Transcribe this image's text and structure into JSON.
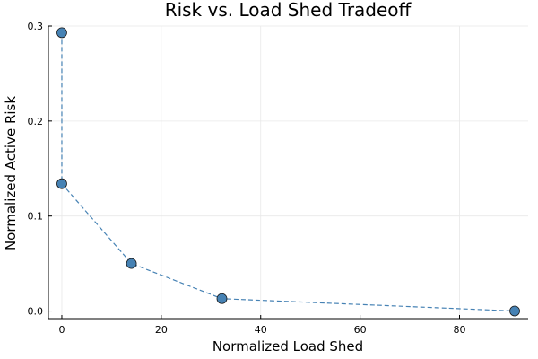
{
  "chart_data": {
    "type": "scatter",
    "title": "Risk vs. Load Shed Tradeoff",
    "xlabel": "Normalized Load Shed",
    "ylabel": "Normalized Active Risk",
    "xlim": [
      -2.7,
      93.8
    ],
    "ylim": [
      -0.008,
      0.3
    ],
    "x_ticks": [
      0,
      20,
      40,
      60,
      80
    ],
    "y_ticks": [
      0.0,
      0.1,
      0.2,
      0.3
    ],
    "x_tick_labels": [
      "0",
      "20",
      "40",
      "60",
      "80"
    ],
    "y_tick_labels": [
      "0.0",
      "0.1",
      "0.2",
      "0.3"
    ],
    "grid": true,
    "legend": "none",
    "series": [
      {
        "x": [
          0.0,
          0.0,
          14.0,
          32.2,
          91.1
        ],
        "y": [
          0.293,
          0.134,
          0.05,
          0.013,
          0.0
        ],
        "color": "#4682b4",
        "line_style": "dashed",
        "marker": "circle"
      }
    ]
  }
}
